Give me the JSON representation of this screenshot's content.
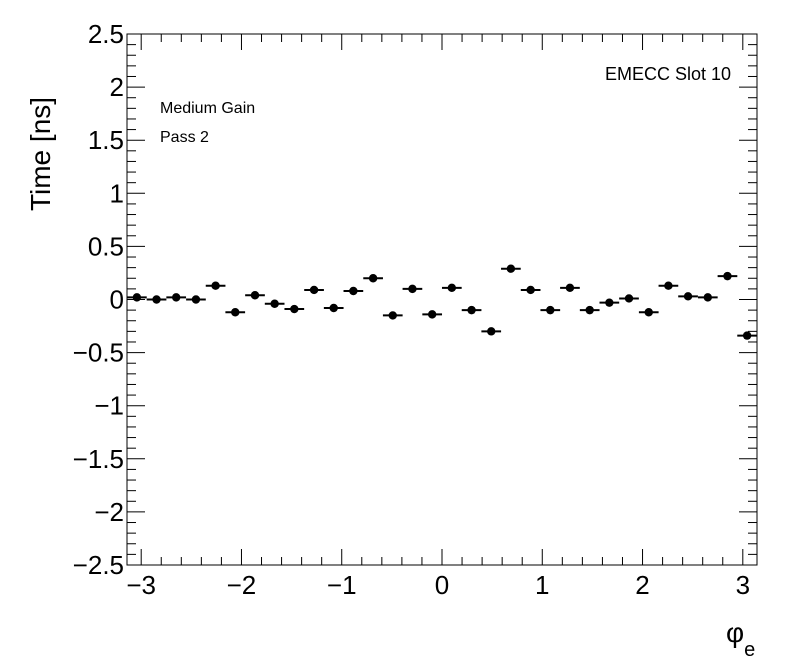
{
  "chart_data": {
    "type": "scatter",
    "title": "",
    "xlabel": "φ",
    "xlabel_sub": "e",
    "ylabel": "Time [ns]",
    "xlim": [
      -3.1416,
      3.1416
    ],
    "ylim": [
      -2.5,
      2.5
    ],
    "x_ticks": [
      -3,
      -2,
      -1,
      0,
      1,
      2,
      3
    ],
    "x_tick_labels": [
      "−3",
      "−2",
      "−1",
      "0",
      "1",
      "2",
      "3"
    ],
    "y_ticks": [
      -2.5,
      -2,
      -1.5,
      -1,
      -0.5,
      0,
      0.5,
      1,
      1.5,
      2,
      2.5
    ],
    "y_tick_labels": [
      "−2.5",
      "−2",
      "−1.5",
      "−1",
      "−0.5",
      "0",
      "0.5",
      "1",
      "1.5",
      "2",
      "2.5"
    ],
    "grid": false,
    "annotations": [
      "EMECC Slot 10",
      "Medium Gain",
      "Pass 2"
    ],
    "bin_half_width": 0.0982,
    "x": [
      -3.043,
      -2.847,
      -2.651,
      -2.454,
      -2.258,
      -2.062,
      -1.865,
      -1.669,
      -1.473,
      -1.276,
      -1.08,
      -0.884,
      -0.687,
      -0.491,
      -0.295,
      -0.098,
      0.098,
      0.295,
      0.491,
      0.687,
      0.884,
      1.08,
      1.276,
      1.473,
      1.669,
      1.865,
      2.062,
      2.258,
      2.454,
      2.651,
      2.847,
      3.043
    ],
    "values": [
      0.02,
      0.0,
      0.02,
      0.0,
      0.13,
      -0.12,
      0.04,
      -0.04,
      -0.09,
      0.09,
      -0.08,
      0.08,
      0.2,
      -0.15,
      0.1,
      -0.14,
      0.11,
      -0.1,
      -0.3,
      0.29,
      0.09,
      -0.1,
      0.11,
      -0.1,
      -0.03,
      0.01,
      -0.12,
      0.13,
      0.03,
      0.02,
      0.22,
      -0.34
    ]
  }
}
